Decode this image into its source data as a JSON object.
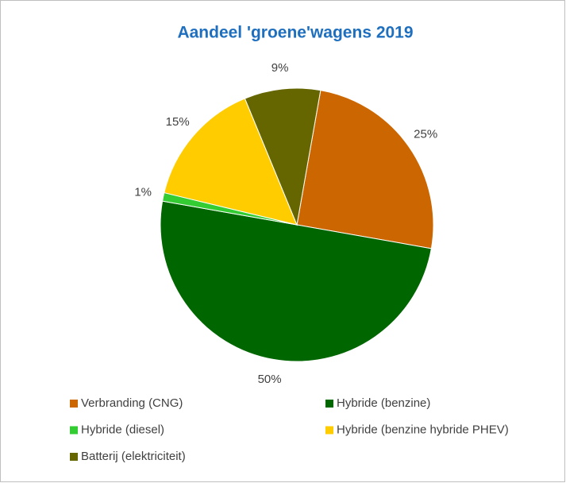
{
  "chart_data": {
    "type": "pie",
    "title": "Aandeel 'groene'wagens 2019",
    "categories": [
      "Verbranding (CNG)",
      "Hybride (benzine)",
      "Hybride (diesel)",
      "Hybride (benzine hybride PHEV)",
      "Batterij (elektriciteit)"
    ],
    "values": [
      25,
      50,
      1,
      15,
      9
    ],
    "value_labels": [
      "25%",
      "50%",
      "1%",
      "15%",
      "9%"
    ],
    "colors": [
      "#cc6600",
      "#006600",
      "#33cc33",
      "#ffcc00",
      "#666600"
    ]
  }
}
